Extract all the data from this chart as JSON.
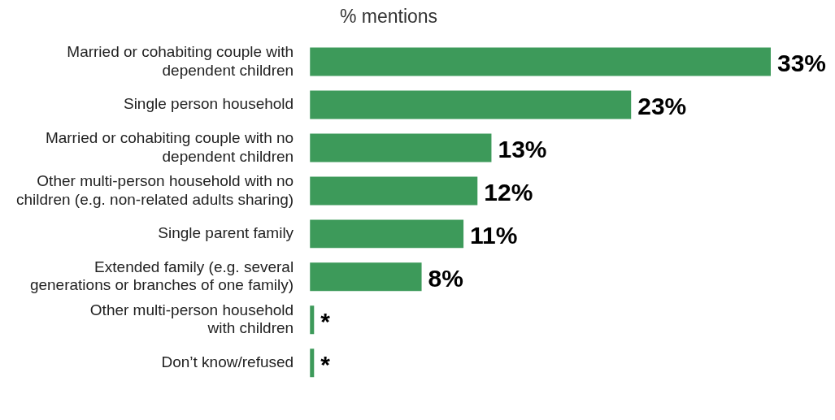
{
  "chart_data": {
    "type": "bar",
    "orientation": "horizontal",
    "title": "% mentions",
    "categories": [
      "Married or cohabiting couple with\ndependent children",
      "Single person household",
      "Married or cohabiting couple with no\ndependent children",
      "Other multi-person household with no\nchildren (e.g. non-related adults sharing)",
      "Single parent family",
      "Extended family (e.g. several\ngenerations or branches of one family)",
      "Other multi-person household\nwith children",
      "Don’t know/refused"
    ],
    "values": [
      33,
      23,
      13,
      12,
      11,
      8,
      0.3,
      0.3
    ],
    "value_labels": [
      "33%",
      "23%",
      "13%",
      "12%",
      "11%",
      "8%",
      "*",
      "*"
    ],
    "color": "#3d9a5a",
    "legend": false
  }
}
